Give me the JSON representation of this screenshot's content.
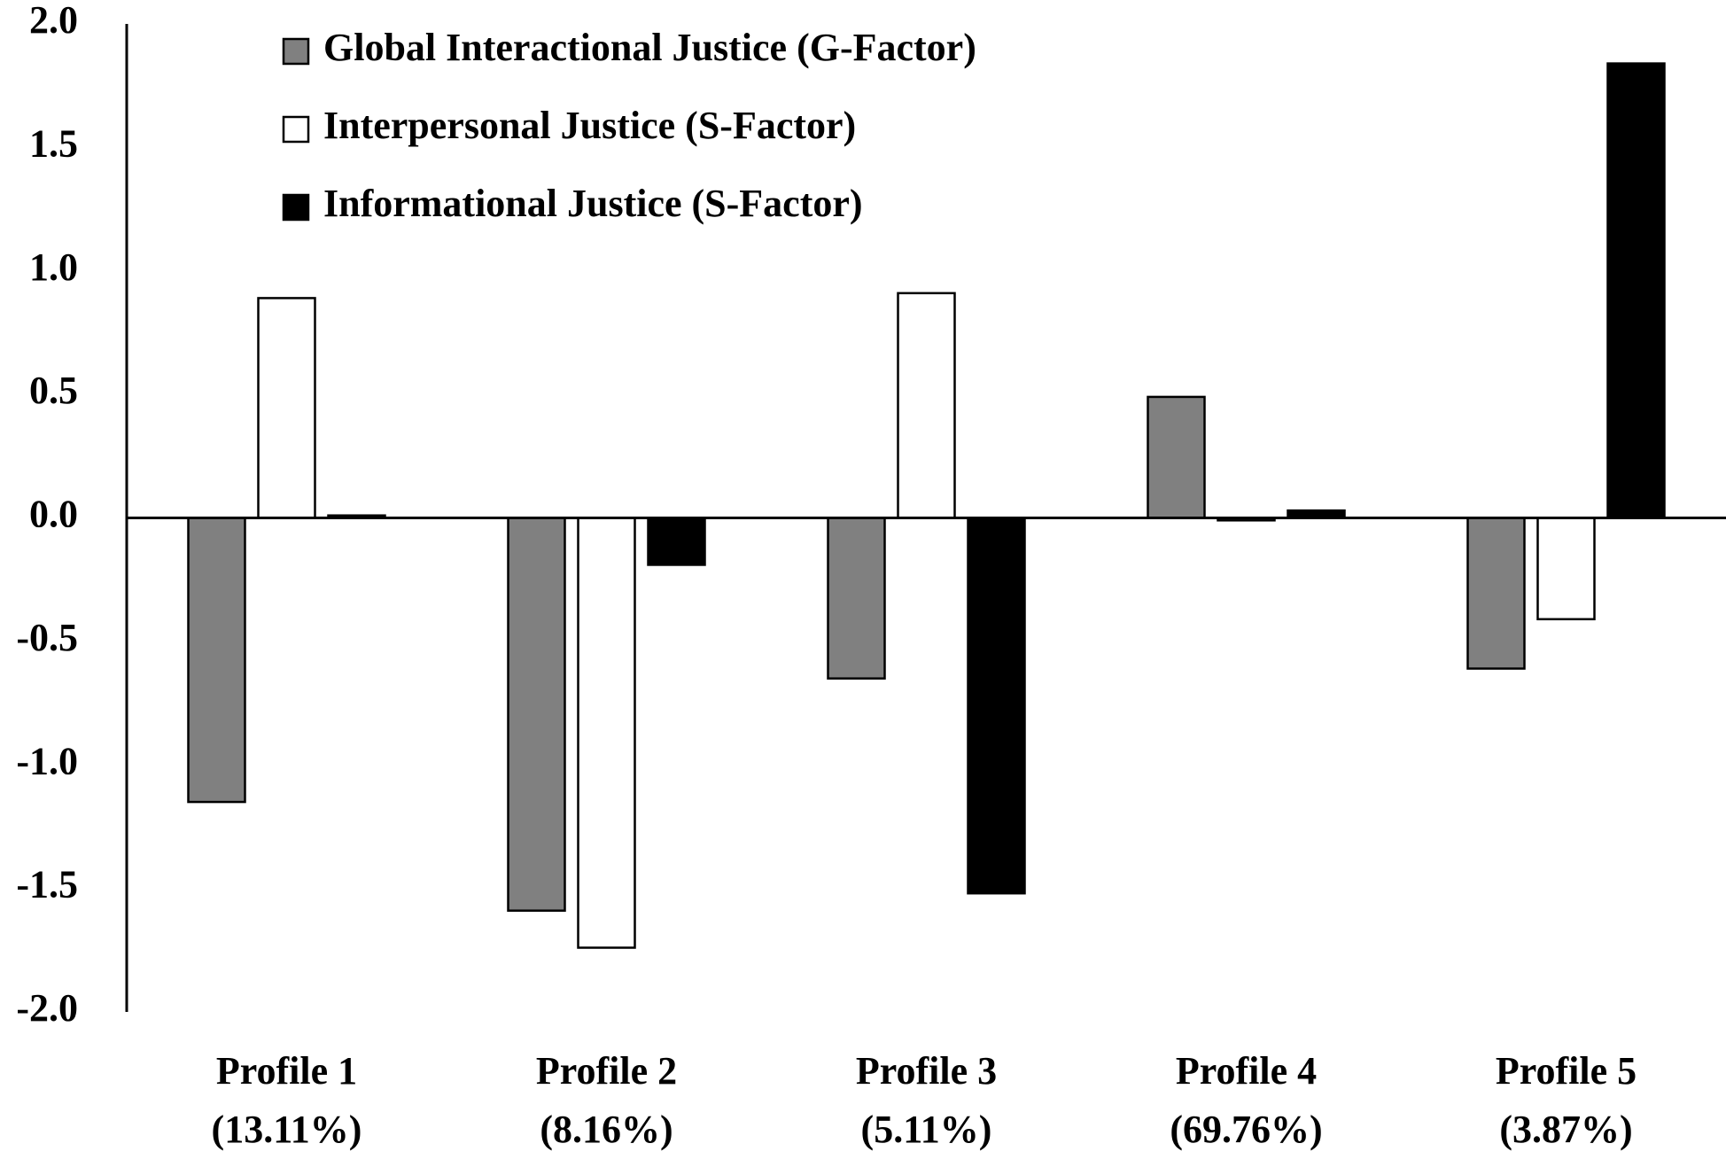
{
  "chart_data": {
    "type": "bar",
    "categories": [
      "Profile 1",
      "Profile 2",
      "Profile 3",
      "Profile 4",
      "Profile 5"
    ],
    "category_shares": [
      "(13.11%)",
      "(8.16%)",
      "(5.11%)",
      "(69.76%)",
      "(3.87%)"
    ],
    "series": [
      {
        "name": "Global Interactional Justice (G-Factor)",
        "color": "#808080",
        "values": [
          -1.15,
          -1.59,
          -0.65,
          0.49,
          -0.61
        ]
      },
      {
        "name": "Interpersonal Justice (S-Factor)",
        "color": "#ffffff",
        "values": [
          0.89,
          -1.74,
          0.91,
          -0.01,
          -0.41
        ]
      },
      {
        "name": "Informational Justice (S-Factor)",
        "color": "#000000",
        "values": [
          0.01,
          -0.19,
          -1.52,
          0.03,
          1.84
        ]
      }
    ],
    "ylim": [
      -2,
      2
    ],
    "yticks": [
      {
        "value": 2,
        "label": "2.0"
      },
      1.5,
      {
        "value": 1,
        "label": "1.0"
      },
      0.5,
      {
        "value": 0,
        "label": "0.0"
      },
      -0.5,
      {
        "value": -1,
        "label": "-1.0"
      },
      -1.5,
      {
        "value": -2,
        "label": "-2.0"
      }
    ],
    "grid": false,
    "legend": "top-left"
  }
}
